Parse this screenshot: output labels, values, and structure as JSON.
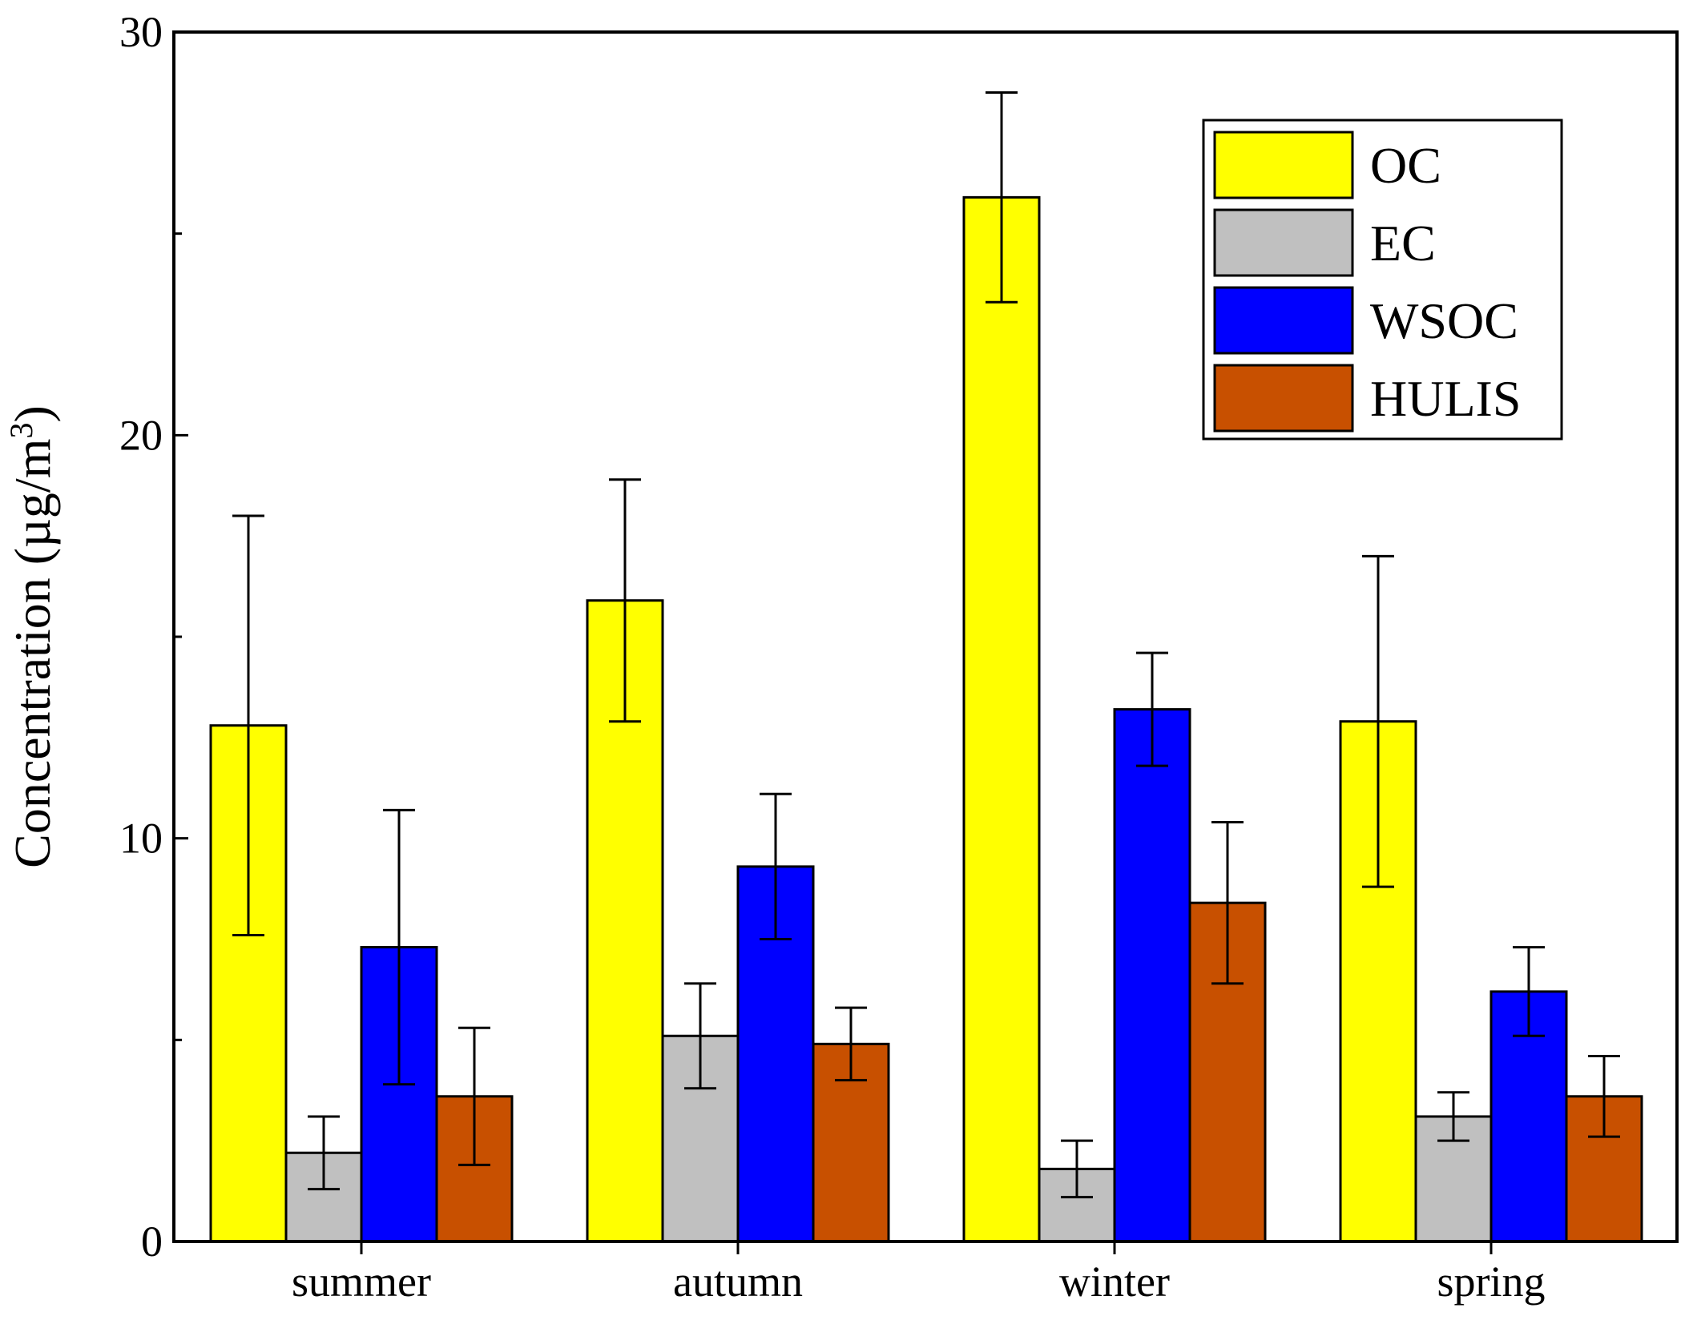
{
  "chart_data": {
    "type": "bar",
    "title": "",
    "xlabel": "",
    "ylabel": "Concentration (µg/m",
    "ylabel_superscript": "3",
    "ylabel_close": ")",
    "ylim": [
      0,
      30
    ],
    "yticks": [
      0,
      10,
      20,
      30
    ],
    "yticks_minor": [
      5,
      15,
      25
    ],
    "grid": false,
    "legend_position": "top-right",
    "categories": [
      "summer",
      "autumn",
      "winter",
      "spring"
    ],
    "series": [
      {
        "name": "OC",
        "color": "#ffff00",
        "values": [
          12.8,
          15.9,
          25.9,
          12.9
        ],
        "errors": [
          5.2,
          3.0,
          2.6,
          4.1
        ]
      },
      {
        "name": "EC",
        "color": "#c0c0c0",
        "values": [
          2.2,
          5.1,
          1.8,
          3.1
        ],
        "errors": [
          0.9,
          1.3,
          0.7,
          0.6
        ]
      },
      {
        "name": "WSOC",
        "color": "#0000ff",
        "values": [
          7.3,
          9.3,
          13.2,
          6.2
        ],
        "errors": [
          3.4,
          1.8,
          1.4,
          1.1
        ]
      },
      {
        "name": "HULIS",
        "color": "#c85000",
        "values": [
          3.6,
          4.9,
          8.4,
          3.6
        ],
        "errors": [
          1.7,
          0.9,
          2.0,
          1.0
        ]
      }
    ]
  }
}
